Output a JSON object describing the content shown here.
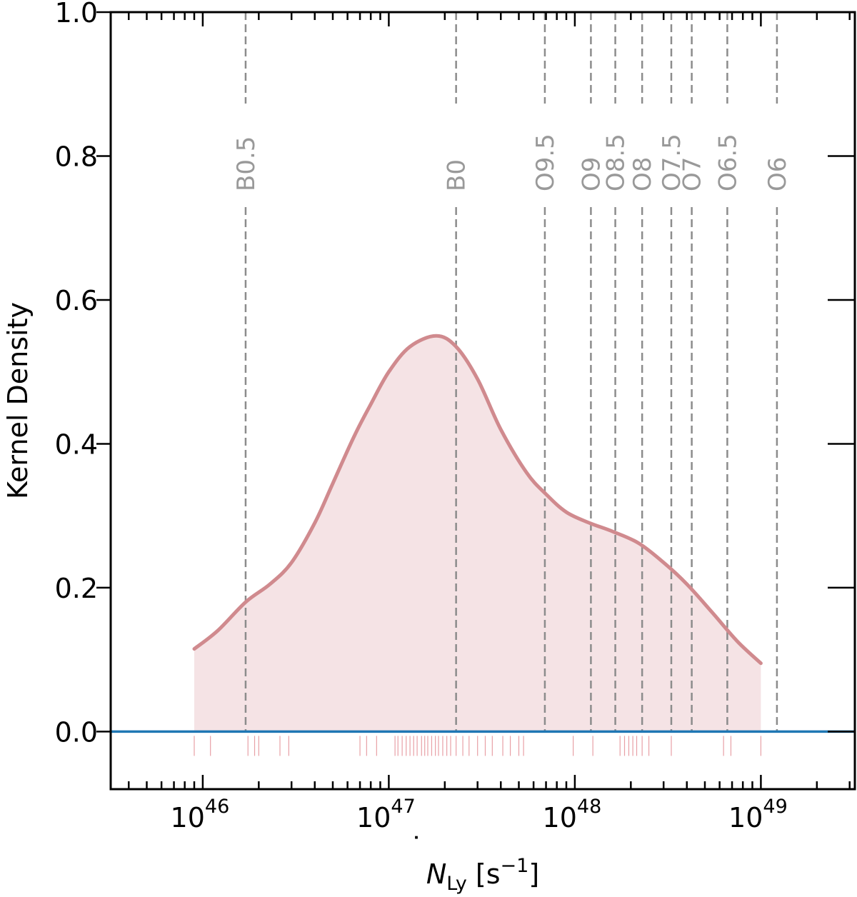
{
  "chart_data": {
    "type": "area",
    "title": "",
    "xlabel_main": "N",
    "xlabel_sub": "Ly",
    "xlabel_unit_open": " [s",
    "xlabel_unit_sup": "−1",
    "xlabel_unit_close": "]",
    "ylabel": "Kernel Density",
    "xscale": "log",
    "xlim": [
      3.2e+45,
      3.2e+49
    ],
    "ylim": [
      -0.08,
      1.0
    ],
    "grid": false,
    "x_tick_labels": [
      {
        "x": 1e+46,
        "base": "10",
        "exp": "46"
      },
      {
        "x": 1e+47,
        "base": "10",
        "exp": "47"
      },
      {
        "x": 1e+48,
        "base": "10",
        "exp": "48"
      },
      {
        "x": 1e+49,
        "base": "10",
        "exp": "49"
      }
    ],
    "y_ticks": [
      0.0,
      0.2,
      0.4,
      0.6,
      0.8,
      1.0
    ],
    "y_tick_labels": [
      "0.0",
      "0.2",
      "0.4",
      "0.6",
      "0.8",
      "1.0"
    ],
    "series": [
      {
        "color": "#d08a8e",
        "fill_color": "#f5e3e5",
        "points": [
          [
            9e+45,
            0.115
          ],
          [
            1.2e+46,
            0.14
          ],
          [
            1.7e+46,
            0.18
          ],
          [
            2.3e+46,
            0.205
          ],
          [
            3e+46,
            0.235
          ],
          [
            4e+46,
            0.29
          ],
          [
            5e+46,
            0.345
          ],
          [
            6.5e+46,
            0.41
          ],
          [
            8e+46,
            0.455
          ],
          [
            1e+47,
            0.5
          ],
          [
            1.3e+47,
            0.535
          ],
          [
            1.8e+47,
            0.55
          ],
          [
            2.3e+47,
            0.535
          ],
          [
            3e+47,
            0.49
          ],
          [
            4e+47,
            0.42
          ],
          [
            5.5e+47,
            0.36
          ],
          [
            7e+47,
            0.33
          ],
          [
            9e+47,
            0.305
          ],
          [
            1.2e+48,
            0.29
          ],
          [
            1.6e+48,
            0.278
          ],
          [
            2.2e+48,
            0.262
          ],
          [
            3e+48,
            0.235
          ],
          [
            4e+48,
            0.205
          ],
          [
            5.5e+48,
            0.165
          ],
          [
            7.5e+48,
            0.125
          ],
          [
            1e+49,
            0.095
          ]
        ]
      }
    ],
    "zero_line_color": "#1f77b4",
    "rug_color": "#e8a0a6",
    "rug_x": [
      9e+45,
      1.1e+46,
      1.75e+46,
      1.9e+46,
      2e+46,
      2.6e+46,
      2.9e+46,
      7e+46,
      7.6e+46,
      8.6e+46,
      1.08e+47,
      1.12e+47,
      1.18e+47,
      1.24e+47,
      1.3e+47,
      1.36e+47,
      1.42e+47,
      1.5e+47,
      1.56e+47,
      1.62e+47,
      1.7e+47,
      1.78e+47,
      1.85e+47,
      1.95e+47,
      2.05e+47,
      2.15e+47,
      2.3e+47,
      2.5e+47,
      2.7e+47,
      3e+47,
      3.3e+47,
      3.6e+47,
      4.1e+47,
      4.5e+47,
      5e+47,
      5.3e+47,
      9.8e+47,
      1.25e+48,
      1.75e+48,
      1.85e+48,
      1.95e+48,
      2.05e+48,
      2.15e+48,
      2.3e+48,
      2.5e+48,
      3.3e+48,
      6.3e+48,
      6.9e+48,
      1e+49
    ],
    "vlines": [
      {
        "label": "B0.5",
        "x": 1.7e+46
      },
      {
        "label": "B0",
        "x": 2.3e+47
      },
      {
        "label": "O9.5",
        "x": 6.9e+47
      },
      {
        "label": "O9",
        "x": 1.22e+48
      },
      {
        "label": "O8.5",
        "x": 1.65e+48
      },
      {
        "label": "O8",
        "x": 2.3e+48
      },
      {
        "label": "O7.5",
        "x": 3.3e+48
      },
      {
        "label": "O7",
        "x": 4.25e+48
      },
      {
        "label": "O6.5",
        "x": 6.6e+48
      },
      {
        "label": "O6",
        "x": 1.22e+49
      }
    ]
  }
}
